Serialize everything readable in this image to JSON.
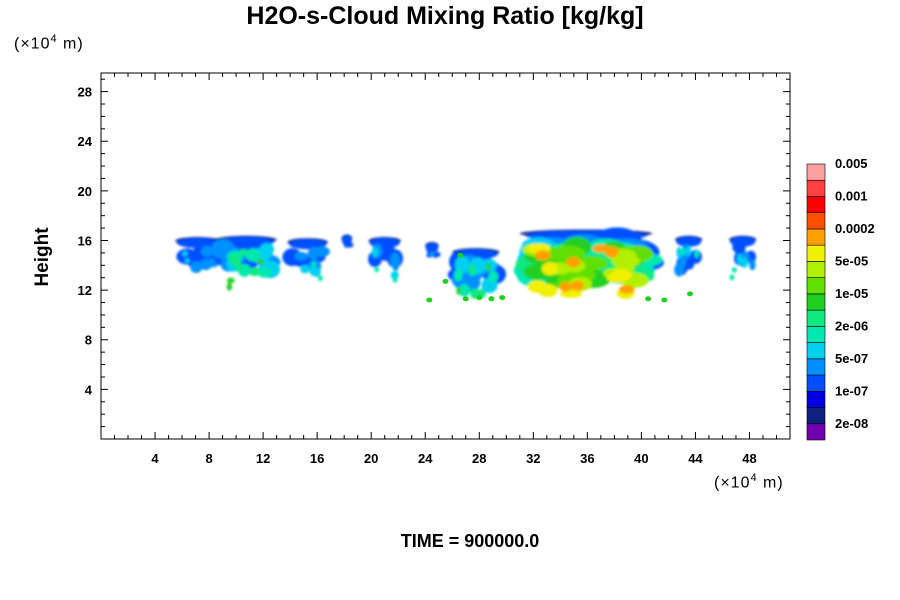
{
  "chart_data": {
    "type": "heatmap",
    "title": "H2O-s-Cloud Mixing Ratio [kg/kg]",
    "xlabel": "",
    "ylabel": "Height",
    "x_unit_label": "(×10",
    "x_unit_exp": "4",
    "x_unit_suffix": " m)",
    "y_unit_label": "(×10",
    "y_unit_exp": "4",
    "y_unit_suffix": " m)",
    "xlim": [
      0,
      51
    ],
    "ylim": [
      0,
      29.5
    ],
    "x_ticks": [
      "4",
      "8",
      "12",
      "16",
      "20",
      "24",
      "28",
      "32",
      "36",
      "40",
      "44",
      "48"
    ],
    "y_ticks": [
      "4",
      "8",
      "12",
      "16",
      "20",
      "24",
      "28"
    ],
    "time_label": "TIME = 900000.0",
    "colorbar": {
      "colors": [
        "#7000b0",
        "#102080",
        "#0000e0",
        "#0050ff",
        "#0090ff",
        "#00d0f0",
        "#00e8b0",
        "#10e880",
        "#20d020",
        "#60e000",
        "#b0f000",
        "#f0f000",
        "#ffa000",
        "#ff5000",
        "#ff0000",
        "#ff4040",
        "#ffa0a0"
      ],
      "labels": [
        "2e-08",
        "1e-07",
        "5e-07",
        "2e-06",
        "1e-05",
        "5e-05",
        "0.0002",
        "0.001",
        "0.005"
      ]
    },
    "cloud_features": [
      {
        "x": [
          5.5,
          8.8
        ],
        "y": [
          13.0,
          16.2
        ],
        "peak_level": 5
      },
      {
        "x": [
          8.5,
          13.0
        ],
        "y": [
          12.0,
          16.3
        ],
        "peak_level": 8
      },
      {
        "x": [
          13.8,
          16.8
        ],
        "y": [
          12.8,
          16.1
        ],
        "peak_level": 6
      },
      {
        "x": [
          17.8,
          18.6
        ],
        "y": [
          15.3,
          16.4
        ],
        "peak_level": 3
      },
      {
        "x": [
          19.8,
          22.2
        ],
        "y": [
          12.5,
          16.2
        ],
        "peak_level": 6
      },
      {
        "x": [
          24.0,
          25.0
        ],
        "y": [
          14.5,
          15.8
        ],
        "peak_level": 4
      },
      {
        "x": [
          26.0,
          29.5
        ],
        "y": [
          11.0,
          15.3
        ],
        "peak_level": 8
      },
      {
        "x": [
          31.0,
          40.8
        ],
        "y": [
          11.0,
          16.8
        ],
        "peak_level": 12
      },
      {
        "x": [
          42.5,
          44.5
        ],
        "y": [
          12.2,
          16.3
        ],
        "peak_level": 6
      },
      {
        "x": [
          46.5,
          48.5
        ],
        "y": [
          12.7,
          16.3
        ],
        "peak_level": 6
      }
    ]
  }
}
